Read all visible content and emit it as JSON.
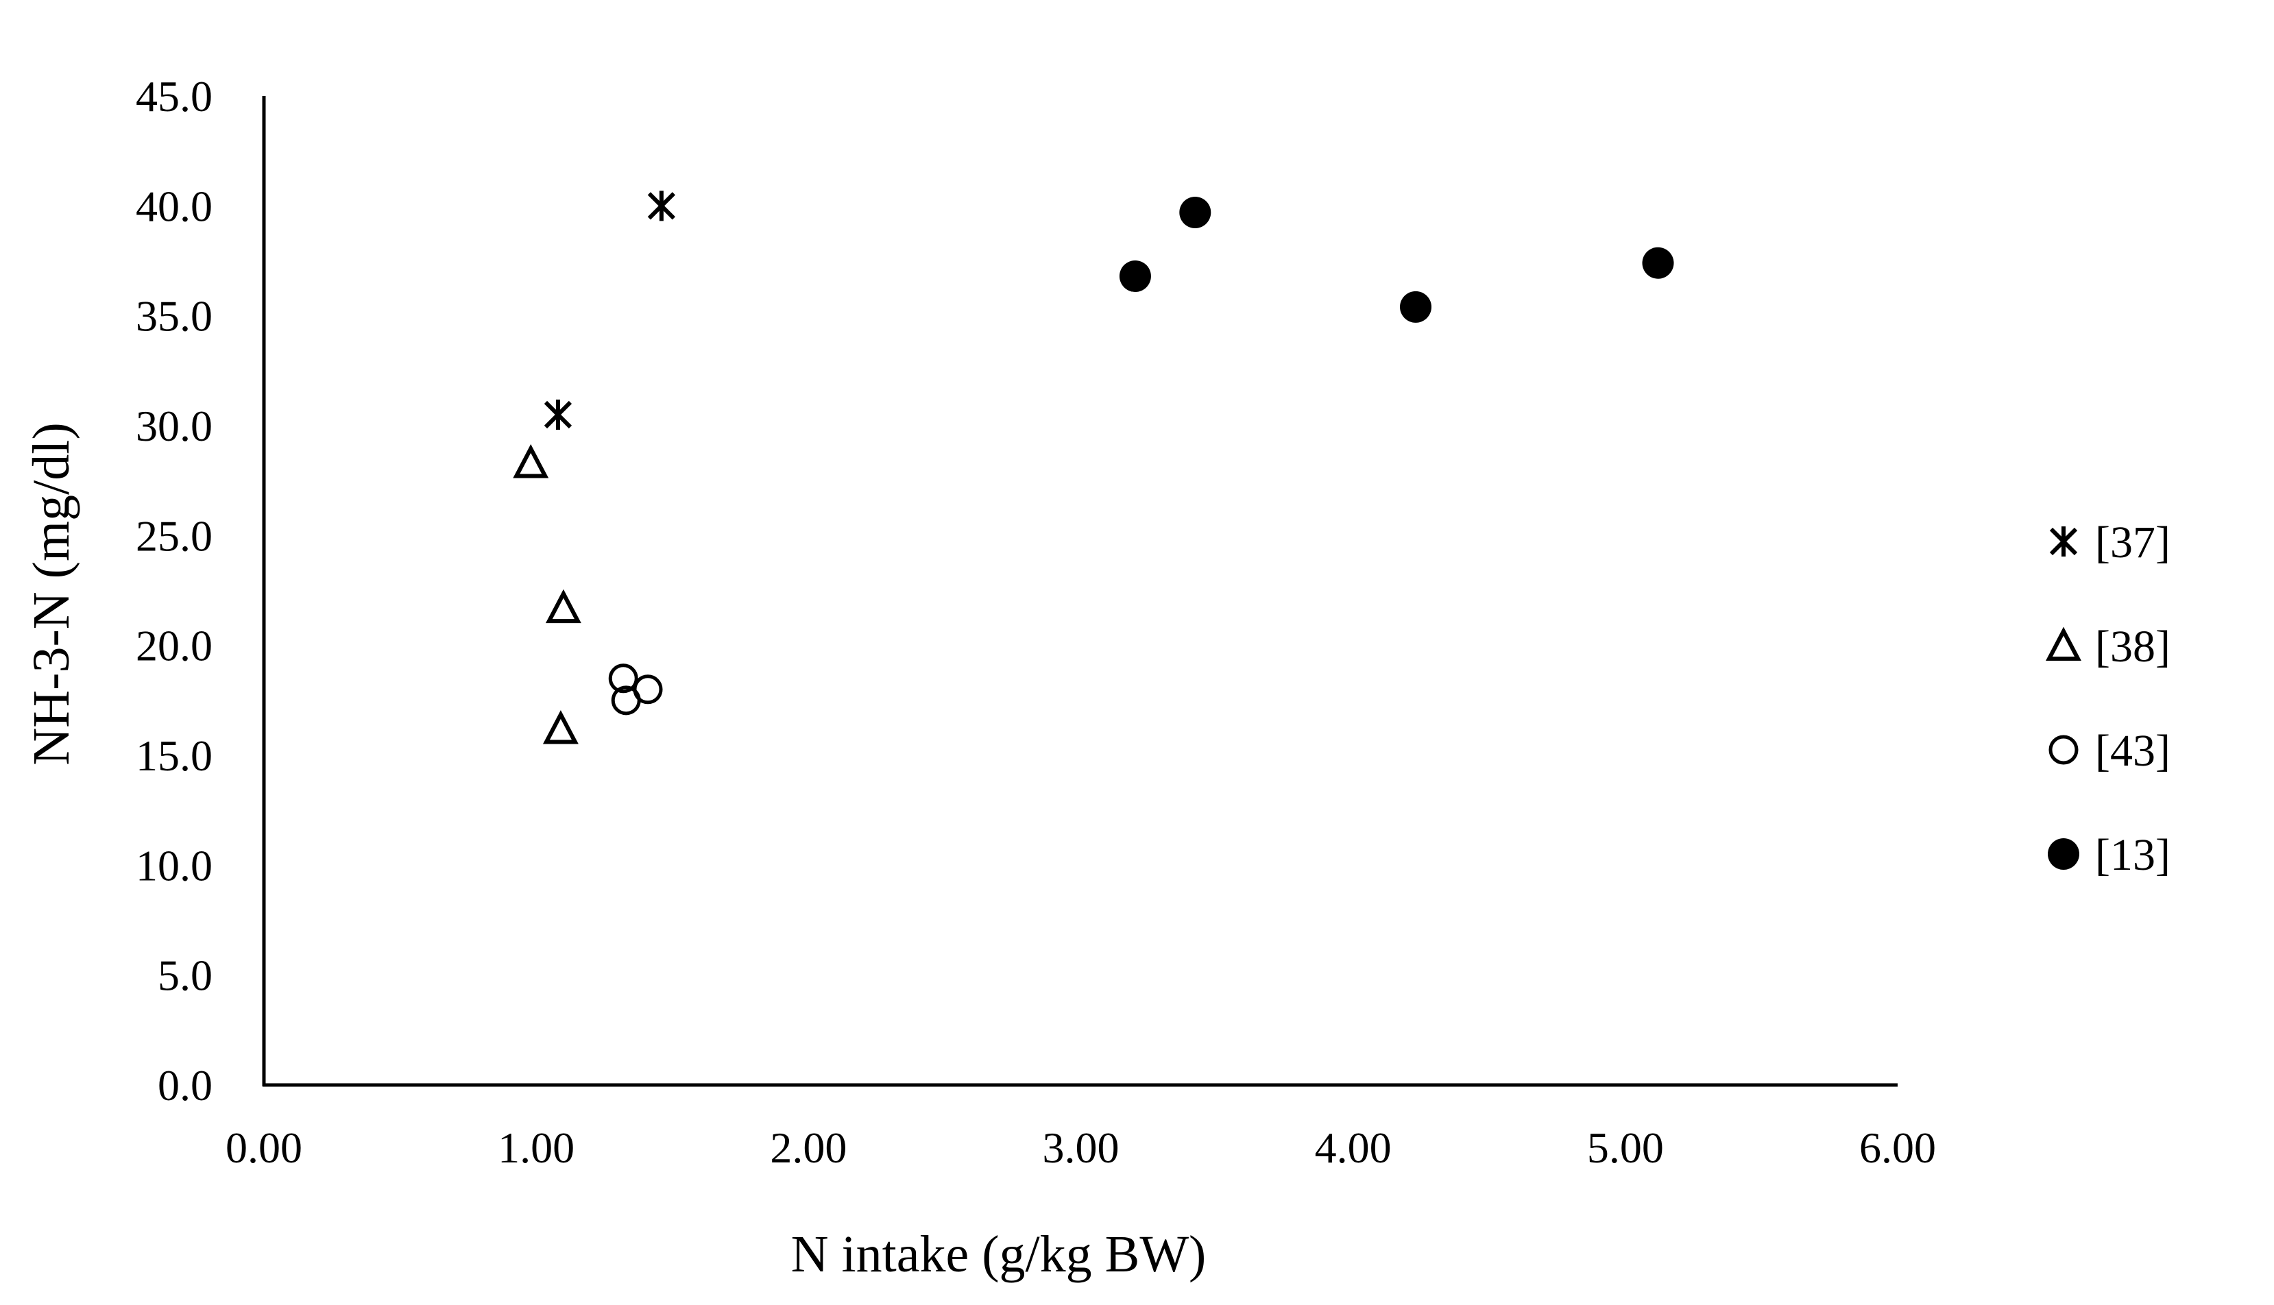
{
  "chart_data": {
    "type": "scatter",
    "title": "",
    "xlabel": "N intake (g/kg BW)",
    "ylabel": "NH-3-N (mg/dl)",
    "xlim": [
      0,
      6
    ],
    "ylim": [
      0,
      45
    ],
    "x_ticks": [
      "0.00",
      "1.00",
      "2.00",
      "3.00",
      "4.00",
      "5.00",
      "6.00"
    ],
    "y_ticks": [
      "0.0",
      "5.0",
      "10.0",
      "15.0",
      "20.0",
      "25.0",
      "30.0",
      "35.0",
      "40.0",
      "45.0"
    ],
    "grid": false,
    "legend_position": "right",
    "series": [
      {
        "name": "[37]",
        "marker": "asterisk",
        "points": [
          {
            "x": 1.46,
            "y": 40.0
          },
          {
            "x": 1.08,
            "y": 30.5
          }
        ]
      },
      {
        "name": "[38]",
        "marker": "triangle-open",
        "points": [
          {
            "x": 0.98,
            "y": 28.3
          },
          {
            "x": 1.1,
            "y": 21.7
          },
          {
            "x": 1.09,
            "y": 16.2
          }
        ]
      },
      {
        "name": "[43]",
        "marker": "circle-open",
        "points": [
          {
            "x": 1.32,
            "y": 18.5
          },
          {
            "x": 1.41,
            "y": 18.0
          },
          {
            "x": 1.33,
            "y": 17.5
          }
        ]
      },
      {
        "name": "[13]",
        "marker": "circle-filled",
        "points": [
          {
            "x": 3.2,
            "y": 36.8
          },
          {
            "x": 3.42,
            "y": 39.7
          },
          {
            "x": 4.23,
            "y": 35.4
          },
          {
            "x": 5.12,
            "y": 37.4
          }
        ]
      }
    ]
  },
  "colors": {
    "ink": "#000000",
    "background": "#ffffff"
  }
}
